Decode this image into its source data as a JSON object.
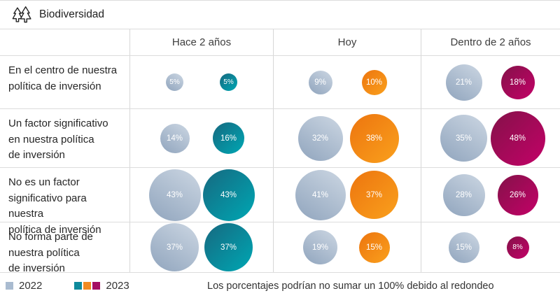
{
  "header": {
    "title": "Biodiversidad",
    "icon": "pine-trees"
  },
  "footnote": "Los porcentajes podrían no sumar un 100% debido al redondeo",
  "legend": {
    "y2022": {
      "label": "2022",
      "color": "#a9bbd0"
    },
    "y2023": {
      "label": "2023",
      "colors": [
        "#0e8a9c",
        "#f18a21",
        "#a50e62"
      ]
    }
  },
  "colors": {
    "gray_2022": "#a9bbd0",
    "teal_2023": "#0e8a9c",
    "orange_2023": "#f18a21",
    "magenta_2023": "#a50e62",
    "grid_line": "#dcdcdc"
  },
  "bubble_gradients": {
    "gray": [
      "#c3cfdd",
      "#93a7bf"
    ],
    "teal": [
      "#146f85",
      "#00a4b1"
    ],
    "orange": [
      "#ee7910",
      "#f99e1c"
    ],
    "magenta": [
      "#8a104c",
      "#c00266"
    ]
  },
  "chart_data": {
    "type": "bubble",
    "title": "Biodiversidad",
    "columns": [
      "Hace 2 años",
      "Hoy",
      "Dentro de 2 años"
    ],
    "series_years": [
      "2022",
      "2023"
    ],
    "value_unit": "%",
    "legend_position": "bottom-left",
    "rows": [
      {
        "label": "En el centro de nuestra\npolítica de inversión",
        "values": [
          [
            5,
            5
          ],
          [
            9,
            10
          ],
          [
            21,
            18
          ]
        ]
      },
      {
        "label": "Un factor significativo\nen nuestra política\nde inversión",
        "values": [
          [
            14,
            16
          ],
          [
            32,
            38
          ],
          [
            35,
            48
          ]
        ]
      },
      {
        "label": "No es un factor\nsignificativo para nuestra\npolítica de inversión",
        "values": [
          [
            43,
            43
          ],
          [
            41,
            37
          ],
          [
            28,
            26
          ]
        ]
      },
      {
        "label": "No forma parte de\nnuestra política\nde inversión",
        "values": [
          [
            37,
            37
          ],
          [
            19,
            15
          ],
          [
            15,
            8
          ]
        ]
      }
    ]
  }
}
